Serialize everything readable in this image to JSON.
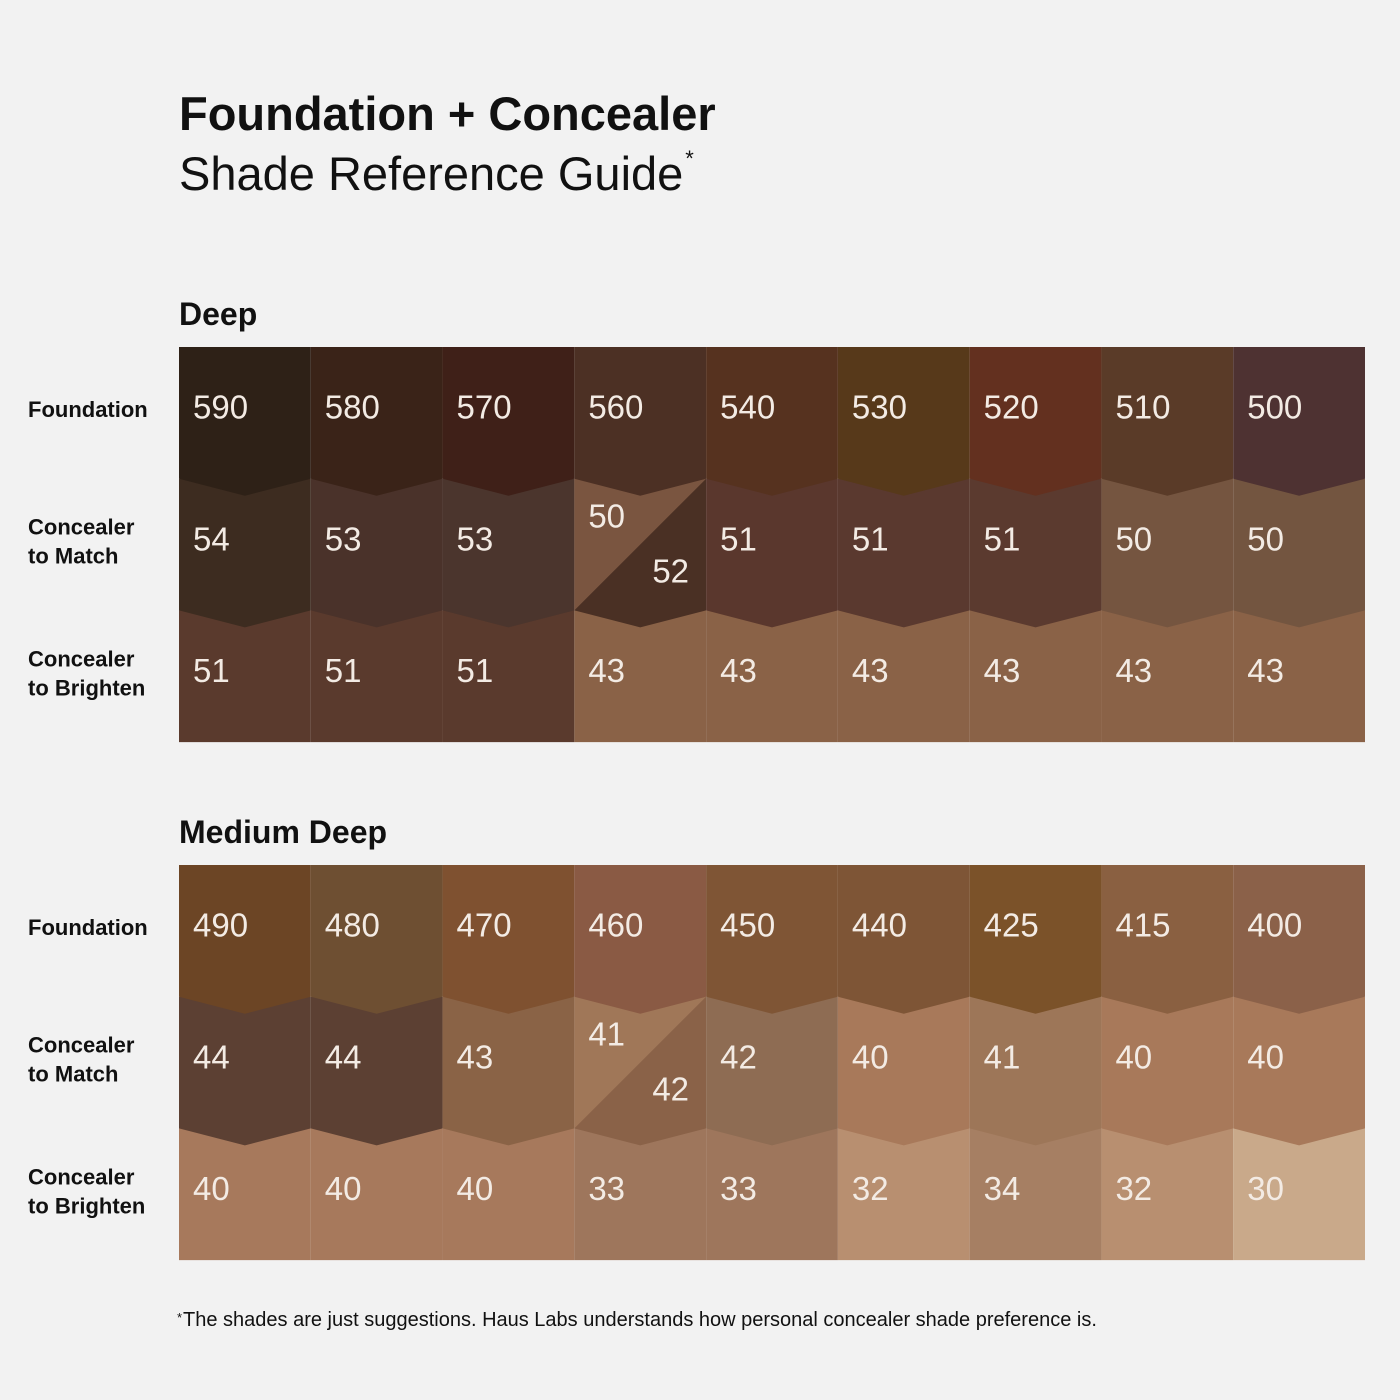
{
  "header": {
    "title": "Foundation + Concealer",
    "subtitle": "Shade Reference Guide",
    "subtitle_mark": "*"
  },
  "sections": [
    {
      "title": "Deep",
      "rows": [
        {
          "label": [
            "Foundation"
          ],
          "cells": [
            590,
            580,
            570,
            560,
            540,
            530,
            520,
            510,
            500
          ]
        },
        {
          "label": [
            "Concealer",
            "to Match"
          ],
          "cells": [
            54,
            53,
            53,
            [
              50,
              52
            ],
            51,
            51,
            51,
            50,
            50
          ]
        },
        {
          "label": [
            "Concealer",
            "to Brighten"
          ],
          "cells": [
            51,
            51,
            51,
            43,
            43,
            43,
            43,
            43,
            43
          ]
        }
      ]
    },
    {
      "title": "Medium Deep",
      "rows": [
        {
          "label": [
            "Foundation"
          ],
          "cells": [
            490,
            480,
            470,
            460,
            450,
            440,
            425,
            415,
            400
          ]
        },
        {
          "label": [
            "Concealer",
            "to Match"
          ],
          "cells": [
            44,
            44,
            43,
            [
              41,
              42
            ],
            42,
            40,
            41,
            40,
            40
          ]
        },
        {
          "label": [
            "Concealer",
            "to Brighten"
          ],
          "cells": [
            40,
            40,
            40,
            33,
            33,
            32,
            34,
            32,
            30
          ]
        }
      ]
    }
  ],
  "footnote": {
    "mark": "*",
    "text": "The shades are just suggestions. Haus Labs understands how personal concealer shade preference is."
  }
}
